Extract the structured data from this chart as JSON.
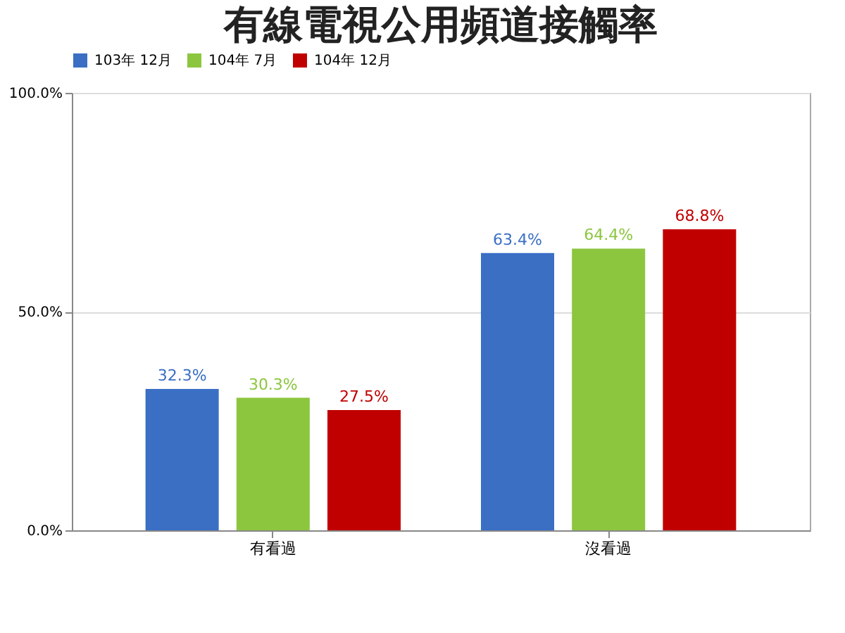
{
  "chart_data": {
    "type": "bar",
    "title": "有線電視公用頻道接觸率",
    "categories": [
      "有看過",
      "沒看過"
    ],
    "series": [
      {
        "name": "103年 12月",
        "color": "#3a6fc4",
        "values": [
          32.3,
          63.4
        ],
        "value_labels": [
          "32.3%",
          "63.4%"
        ]
      },
      {
        "name": "104年 7月",
        "color": "#8cc63f",
        "values": [
          30.3,
          64.4
        ],
        "value_labels": [
          "30.3%",
          "64.4%"
        ]
      },
      {
        "name": "104年 12月",
        "color": "#c00000",
        "values": [
          27.5,
          68.8
        ],
        "value_labels": [
          "27.5%",
          "68.8%"
        ]
      }
    ],
    "ylim": [
      0,
      100
    ],
    "yticks": [
      {
        "value": 0,
        "label": "0.0%"
      },
      {
        "value": 50,
        "label": "50.0%"
      },
      {
        "value": 100,
        "label": "100.0%"
      }
    ],
    "grid": "y",
    "legend": "top"
  }
}
